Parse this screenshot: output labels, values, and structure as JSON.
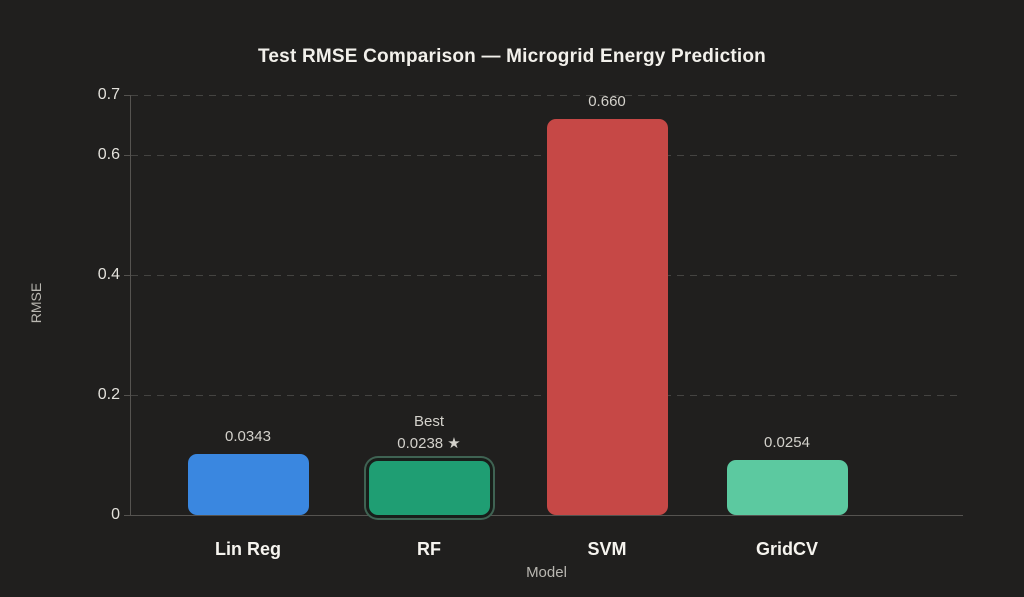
{
  "chart_data": {
    "type": "bar",
    "title": "Test RMSE Comparison — Microgrid Energy Prediction",
    "xlabel": "Model",
    "ylabel": "RMSE",
    "categories": [
      "Lin Reg",
      "RF",
      "SVM",
      "GridCV"
    ],
    "values": [
      0.0343,
      0.0238,
      0.66,
      0.0254
    ],
    "value_labels": [
      "0.0343",
      "0.0238 ★",
      "0.660",
      "0.0254"
    ],
    "bar_colors": [
      "#3a87e0",
      "#1f9e73",
      "#c64846",
      "#5cc9a0"
    ],
    "best_index": 1,
    "best_annotation": "Best",
    "best_star_icon": "★",
    "best_ring_color": "#3f6353",
    "yticks": [
      0,
      0.2,
      0.4,
      0.6,
      0.7
    ],
    "ytick_labels": [
      "0",
      "0.2",
      "0.4",
      "0.6",
      "0.7"
    ],
    "ylim": [
      0,
      0.7
    ],
    "grid": "horizontal-dashed",
    "legend": "none",
    "background_color": "#201f1e"
  }
}
